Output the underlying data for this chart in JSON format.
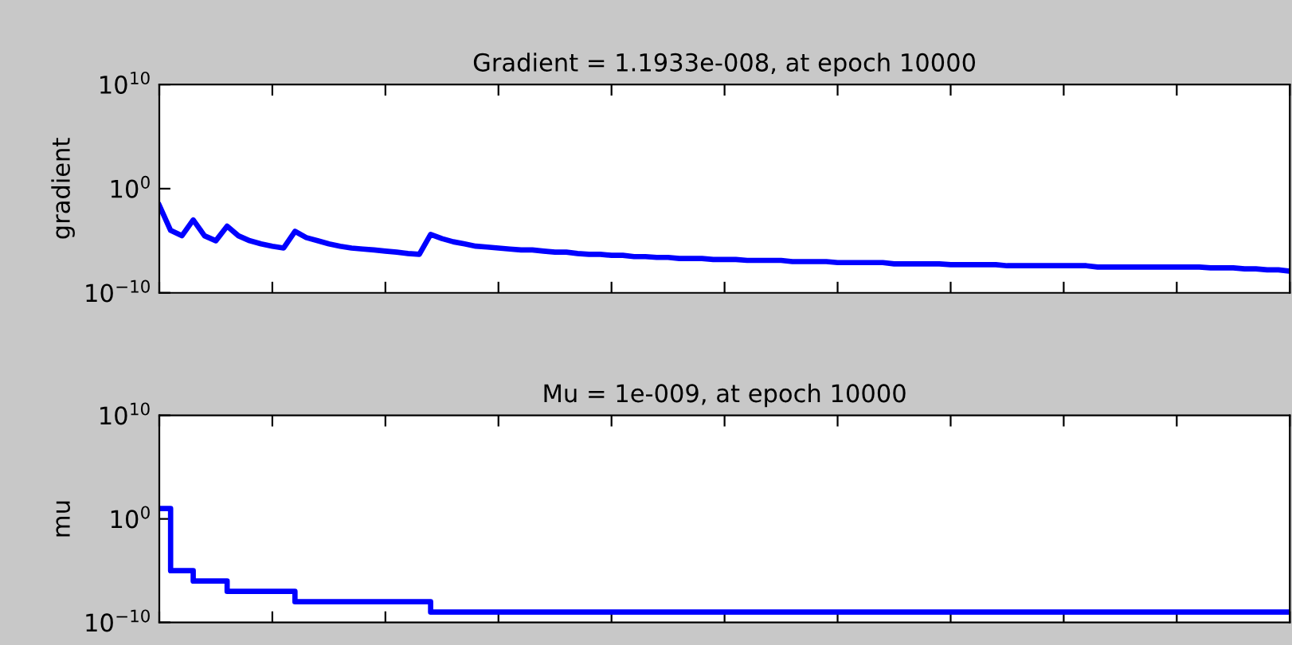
{
  "chart_data": [
    {
      "type": "line",
      "title": "Gradient = 1.1933e-008, at epoch 10000",
      "ylabel": "gradient",
      "log": "y",
      "grid": false,
      "categories": [
        null,
        null,
        null,
        null,
        null,
        null,
        null,
        null,
        null,
        null,
        null,
        null,
        null,
        null,
        null,
        null,
        null,
        null,
        null,
        null,
        null,
        null,
        null,
        null,
        null,
        null,
        null,
        null,
        null,
        null,
        null,
        null,
        null,
        null,
        null,
        null,
        null,
        null,
        null,
        null,
        null,
        null,
        null,
        null,
        null,
        null,
        null,
        null,
        null,
        null,
        null,
        null,
        null,
        null,
        null,
        null,
        null,
        null,
        null,
        null,
        null,
        null,
        null,
        null,
        null,
        null,
        null,
        null,
        null,
        null,
        null,
        null,
        null,
        null,
        null,
        null,
        null,
        null,
        null,
        null,
        null,
        null,
        null,
        null,
        null,
        null,
        null,
        null,
        null,
        null,
        null,
        null,
        null,
        null,
        null,
        null,
        null,
        null,
        null,
        null,
        null
      ],
      "ylim": [
        1e-10,
        10000000000.0
      ],
      "yticks": [
        {
          "value": 1e-10,
          "label": "10$^{−10}$"
        },
        {
          "value": 1,
          "label": "10$^{0}$"
        },
        {
          "value": 10000000000.0,
          "label": "10$^{10}$"
        }
      ],
      "series": [
        {
          "color": "#0000ff",
          "values": [
            0.025,
            0.0001,
            3e-05,
            0.001,
            3e-05,
            1e-05,
            0.00025,
            3e-05,
            1e-05,
            5e-06,
            3e-06,
            2e-06,
            8e-05,
            2e-05,
            1e-05,
            5e-06,
            3e-06,
            2e-06,
            1.6e-06,
            1.3e-06,
            1e-06,
            8e-07,
            6e-07,
            5e-07,
            4e-05,
            1.6e-05,
            8e-06,
            5e-06,
            3e-06,
            2.5e-06,
            2e-06,
            1.6e-06,
            1.3e-06,
            1.3e-06,
            1e-06,
            8e-07,
            8e-07,
            6e-07,
            5e-07,
            5e-07,
            4e-07,
            4e-07,
            3e-07,
            3e-07,
            2.5e-07,
            2.5e-07,
            2e-07,
            2e-07,
            2e-07,
            1.6e-07,
            1.6e-07,
            1.6e-07,
            1.3e-07,
            1.3e-07,
            1.3e-07,
            1.3e-07,
            1e-07,
            1e-07,
            1e-07,
            1e-07,
            8e-08,
            8e-08,
            8e-08,
            8e-08,
            8e-08,
            6e-08,
            6e-08,
            6e-08,
            6e-08,
            6e-08,
            5e-08,
            5e-08,
            5e-08,
            5e-08,
            5e-08,
            4e-08,
            4e-08,
            4e-08,
            4e-08,
            4e-08,
            4e-08,
            4e-08,
            4e-08,
            3e-08,
            3e-08,
            3e-08,
            3e-08,
            3e-08,
            3e-08,
            3e-08,
            3e-08,
            3e-08,
            3e-08,
            2.5e-08,
            2.5e-08,
            2.5e-08,
            2e-08,
            2e-08,
            1.6e-08,
            1.6e-08,
            1.2e-08
          ]
        }
      ]
    },
    {
      "type": "step",
      "title": "Mu = 1e-009, at epoch 10000",
      "ylabel": "mu",
      "log": "y",
      "grid": false,
      "categories": [
        null,
        null,
        null,
        null,
        null,
        null,
        null,
        null,
        null,
        null,
        null,
        null,
        null,
        null,
        null,
        null,
        null,
        null,
        null,
        null,
        null,
        null,
        null,
        null,
        null,
        null,
        null,
        null,
        null,
        null,
        null,
        null,
        null,
        null,
        null,
        null,
        null,
        null,
        null,
        null,
        null,
        null,
        null,
        null,
        null,
        null,
        null,
        null,
        null,
        null,
        null,
        null,
        null,
        null,
        null,
        null,
        null,
        null,
        null,
        null,
        null,
        null,
        null,
        null,
        null,
        null,
        null,
        null,
        null,
        null,
        null,
        null,
        null,
        null,
        null,
        null,
        null,
        null,
        null,
        null,
        null,
        null,
        null,
        null,
        null,
        null,
        null,
        null,
        null,
        null,
        null,
        null,
        null,
        null,
        null,
        null,
        null,
        null,
        null,
        null,
        null
      ],
      "ylim": [
        1e-10,
        10000000000.0
      ],
      "yticks": [
        {
          "value": 1e-10,
          "label": "10$^{−10}$"
        },
        {
          "value": 1,
          "label": "10$^{0}$"
        },
        {
          "value": 10000000000.0,
          "label": "10$^{10}$"
        }
      ],
      "series": [
        {
          "color": "#0000ff",
          "values": [
            10,
            1e-05,
            1e-05,
            1e-06,
            1e-06,
            1e-06,
            1e-07,
            1e-07,
            1e-07,
            1e-07,
            1e-07,
            1e-07,
            1e-08,
            1e-08,
            1e-08,
            1e-08,
            1e-08,
            1e-08,
            1e-08,
            1e-08,
            1e-08,
            1e-08,
            1e-08,
            1e-08,
            1e-09,
            1e-09,
            1e-09,
            1e-09,
            1e-09,
            1e-09,
            1e-09,
            1e-09,
            1e-09,
            1e-09,
            1e-09,
            1e-09,
            1e-09,
            1e-09,
            1e-09,
            1e-09,
            1e-09,
            1e-09,
            1e-09,
            1e-09,
            1e-09,
            1e-09,
            1e-09,
            1e-09,
            1e-09,
            1e-09,
            1e-09,
            1e-09,
            1e-09,
            1e-09,
            1e-09,
            1e-09,
            1e-09,
            1e-09,
            1e-09,
            1e-09,
            1e-09,
            1e-09,
            1e-09,
            1e-09,
            1e-09,
            1e-09,
            1e-09,
            1e-09,
            1e-09,
            1e-09,
            1e-09,
            1e-09,
            1e-09,
            1e-09,
            1e-09,
            1e-09,
            1e-09,
            1e-09,
            1e-09,
            1e-09,
            1e-09,
            1e-09,
            1e-09,
            1e-09,
            1e-09,
            1e-09,
            1e-09,
            1e-09,
            1e-09,
            1e-09,
            1e-09,
            1e-09,
            1e-09,
            1e-09,
            1e-09,
            1e-09,
            1e-09,
            1e-09,
            1e-09,
            1e-09,
            1e-09
          ]
        }
      ]
    }
  ]
}
